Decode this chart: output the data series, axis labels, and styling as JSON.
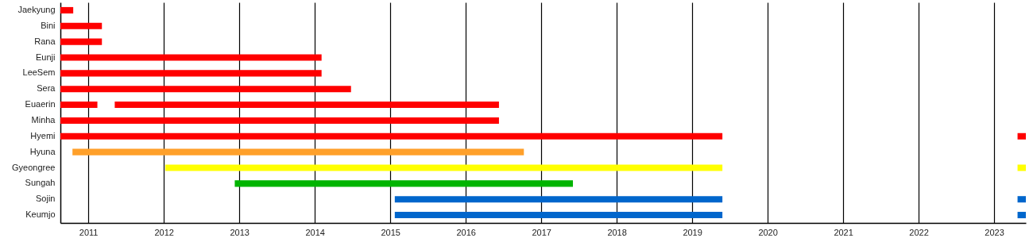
{
  "chart_data": {
    "type": "bar",
    "orientation": "horizontal",
    "categories": [
      "Jaekyung",
      "Bini",
      "Rana",
      "Eunji",
      "LeeSem",
      "Sera",
      "Euaerin",
      "Minha",
      "Hyemi",
      "Hyuna",
      "Gyeongree",
      "Sungah",
      "Sojin",
      "Keumjo"
    ],
    "series": [
      {
        "base": [
          2010.63,
          2010.63,
          2010.63,
          2010.63,
          2010.63,
          2010.63,
          2010.63,
          2010.63,
          2010.63,
          2010.79,
          2012.02,
          2012.94,
          2015.06,
          2015.06
        ],
        "values": [
          0.17,
          0.55,
          0.55,
          3.46,
          3.46,
          3.85,
          0.49,
          5.81,
          8.77,
          5.98,
          7.38,
          4.48,
          4.34,
          4.34
        ],
        "colors": [
          "#ff0000",
          "#ff0000",
          "#ff0000",
          "#ff0000",
          "#ff0000",
          "#ff0000",
          "#ff0000",
          "#ff0000",
          "#ff0000",
          "#ffa02a",
          "#ffff00",
          "#00b400",
          "#0066cc",
          "#0066cc"
        ]
      },
      {
        "base": [
          null,
          null,
          null,
          null,
          null,
          null,
          2011.35,
          null,
          2023.31,
          null,
          2023.31,
          null,
          2023.31,
          2023.31
        ],
        "values": [
          null,
          null,
          null,
          null,
          null,
          null,
          5.09,
          null,
          0.11,
          null,
          0.11,
          null,
          0.11,
          0.11
        ],
        "colors": [
          null,
          null,
          null,
          null,
          null,
          null,
          "#ff0000",
          null,
          "#ff0000",
          null,
          "#ffff00",
          null,
          "#0066cc",
          "#0066cc"
        ]
      }
    ],
    "xlim": [
      2010.63,
      2023.42
    ],
    "xticks": [
      2011,
      2012,
      2013,
      2014,
      2015,
      2016,
      2017,
      2018,
      2019,
      2020,
      2021,
      2022,
      2023
    ],
    "grid": "x"
  }
}
